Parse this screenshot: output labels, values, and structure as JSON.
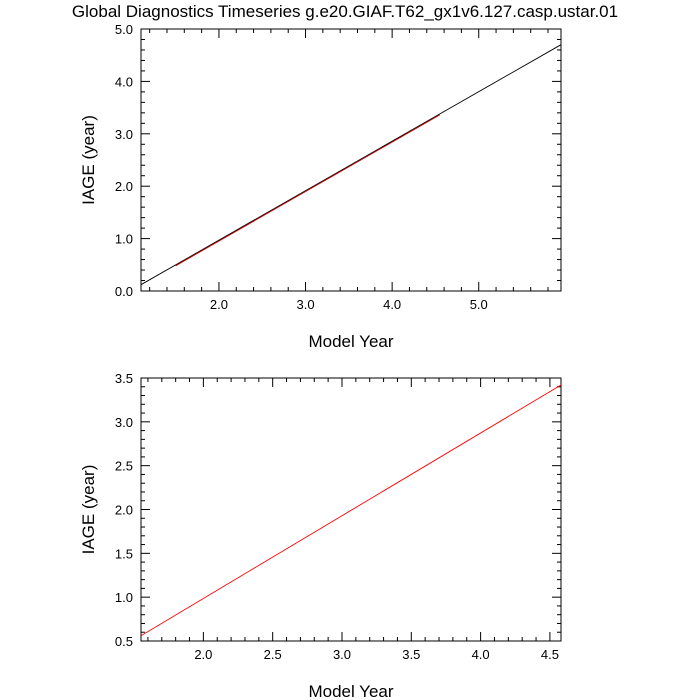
{
  "title": "Global Diagnostics Timeseries g.e20.GIAF.T62_gx1v6.127.casp.ustar.01",
  "colors": {
    "red_series": "#ff0000",
    "black_series": "#000000",
    "axes": "#000000"
  },
  "chart_data": [
    {
      "type": "line",
      "xlabel": "Model Year",
      "ylabel": "IAGE (year)",
      "xlim": [
        1.1,
        5.95
      ],
      "ylim": [
        0.0,
        5.0
      ],
      "x_ticks": [
        2.0,
        3.0,
        4.0,
        5.0
      ],
      "x_tick_labels": [
        "2.0",
        "3.0",
        "4.0",
        "5.0"
      ],
      "y_ticks": [
        0.0,
        1.0,
        2.0,
        3.0,
        4.0,
        5.0
      ],
      "y_tick_labels": [
        "0.0",
        "1.0",
        "2.0",
        "3.0",
        "4.0",
        "5.0"
      ],
      "grid": false,
      "series": [
        {
          "color": "#000000",
          "x": [
            1.1,
            5.95
          ],
          "y": [
            0.12,
            4.7
          ]
        },
        {
          "color": "#cc0000",
          "x": [
            1.5,
            4.55
          ],
          "y": [
            0.48,
            3.36
          ]
        }
      ]
    },
    {
      "type": "line",
      "xlabel": "Model Year",
      "ylabel": "IAGE (year)",
      "xlim": [
        1.55,
        4.58
      ],
      "ylim": [
        0.5,
        3.5
      ],
      "x_ticks": [
        2.0,
        2.5,
        3.0,
        3.5,
        4.0,
        4.5
      ],
      "x_tick_labels": [
        "2.0",
        "2.5",
        "3.0",
        "3.5",
        "4.0",
        "4.5"
      ],
      "y_ticks": [
        0.5,
        1.0,
        1.5,
        2.0,
        2.5,
        3.0,
        3.5
      ],
      "y_tick_labels": [
        "0.5",
        "1.0",
        "1.5",
        "2.0",
        "2.5",
        "3.0",
        "3.5"
      ],
      "grid": false,
      "series": [
        {
          "color": "#ff0000",
          "x": [
            1.55,
            4.58
          ],
          "y": [
            0.56,
            3.42
          ]
        }
      ]
    }
  ]
}
